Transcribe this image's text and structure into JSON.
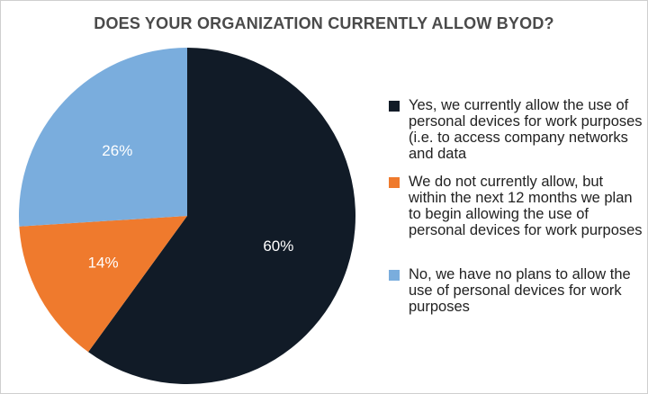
{
  "chart_data": {
    "type": "pie",
    "title": "DOES YOUR ORGANIZATION CURRENTLY ALLOW BYOD?",
    "slices": [
      {
        "label": "Yes, we currently allow the use of personal devices for work purposes (i.e. to access company networks and data",
        "value": 60,
        "display": "60%",
        "color": "#111b27"
      },
      {
        "label": "We do not currently allow, but within the next 12 months we plan to begin allowing the use of personal devices for work purposes",
        "value": 14,
        "display": "14%",
        "color": "#ef7a2d"
      },
      {
        "label": "No, we have no plans to allow the use of personal devices for work purposes",
        "value": 26,
        "display": "26%",
        "color": "#7aaddd"
      }
    ],
    "legend_position": "right"
  }
}
